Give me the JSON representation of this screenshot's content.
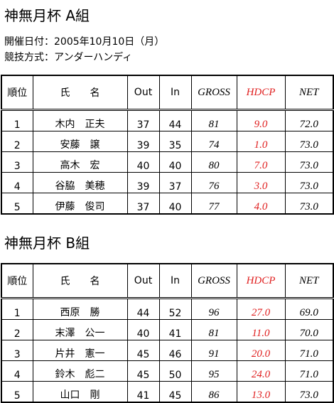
{
  "sections": [
    {
      "title": "神無月杯 A組",
      "lines": [
        "開催日付：2005年10月10日（月）",
        "競技方式：アンダーハンディ"
      ],
      "table": {
        "header": [
          "順位",
          "氏　　名",
          "Out",
          "In",
          "GROSS",
          "HDCP",
          "NET"
        ],
        "rows": [
          [
            "1",
            "木内　正夫",
            "37",
            "44",
            "81",
            "9.0",
            "72.0"
          ],
          [
            "2",
            "安藤　譲",
            "39",
            "35",
            "74",
            "1.0",
            "73.0"
          ],
          [
            "3",
            "高木　宏",
            "40",
            "40",
            "80",
            "7.0",
            "73.0"
          ],
          [
            "4",
            "谷脇　美穂",
            "39",
            "37",
            "76",
            "3.0",
            "73.0"
          ],
          [
            "5",
            "伊藤　俊司",
            "37",
            "40",
            "77",
            "4.0",
            "73.0"
          ]
        ]
      }
    },
    {
      "title": "神無月杯 B組",
      "lines": [],
      "table": {
        "header": [
          "順位",
          "氏　　名",
          "Out",
          "In",
          "GROSS",
          "HDCP",
          "NET"
        ],
        "rows": [
          [
            "1",
            "西原　勝",
            "44",
            "52",
            "96",
            "27.0",
            "69.0"
          ],
          [
            "2",
            "末澤　公一",
            "40",
            "41",
            "81",
            "11.0",
            "70.0"
          ],
          [
            "3",
            "片井　憲一",
            "45",
            "46",
            "91",
            "20.0",
            "71.0"
          ],
          [
            "4",
            "鈴木　彪二",
            "45",
            "50",
            "95",
            "24.0",
            "71.0"
          ],
          [
            "5",
            "山口　剛",
            "41",
            "45",
            "86",
            "13.0",
            "73.0"
          ]
        ]
      }
    }
  ]
}
